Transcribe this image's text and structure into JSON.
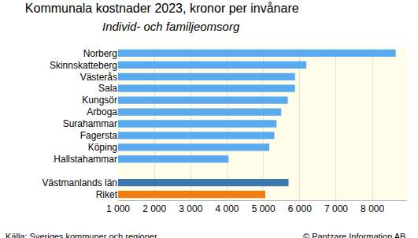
{
  "chart_data": {
    "type": "bar",
    "orientation": "horizontal",
    "title": "Kommunala kostnader 2023, kronor per invånare",
    "subtitle": "Individ- och familjeomsorg",
    "source": "Källa: Sveriges kommuner och regioner",
    "credit": "© Pantzare Information AB",
    "categories": [
      "Norberg",
      "Skinnskatteberg",
      "Västerås",
      "Sala",
      "Kungsör",
      "Arboga",
      "Surahammar",
      "Fagersta",
      "Köping",
      "Hallstahammar",
      null,
      "Västmanlands län",
      "Riket"
    ],
    "values": [
      8640,
      6180,
      5870,
      5870,
      5670,
      5490,
      5360,
      5300,
      5160,
      4040,
      null,
      5690,
      5050
    ],
    "colors": [
      "#5aaaf0",
      "#5aaaf0",
      "#5aaaf0",
      "#5aaaf0",
      "#5aaaf0",
      "#5aaaf0",
      "#5aaaf0",
      "#5aaaf0",
      "#5aaaf0",
      "#5aaaf0",
      null,
      "#3a78ad",
      "#ee7d12"
    ],
    "xlim": [
      1000,
      8950
    ],
    "xticks": [
      {
        "value": 1000,
        "label": "1 000"
      },
      {
        "value": 2000,
        "label": "2 000"
      },
      {
        "value": 3000,
        "label": "3 000"
      },
      {
        "value": 4000,
        "label": "4 000"
      },
      {
        "value": 5000,
        "label": "5 000"
      },
      {
        "value": 6000,
        "label": "6 000"
      },
      {
        "value": 7000,
        "label": "7 000"
      },
      {
        "value": 8000,
        "label": "8 000"
      }
    ],
    "grid": true
  }
}
